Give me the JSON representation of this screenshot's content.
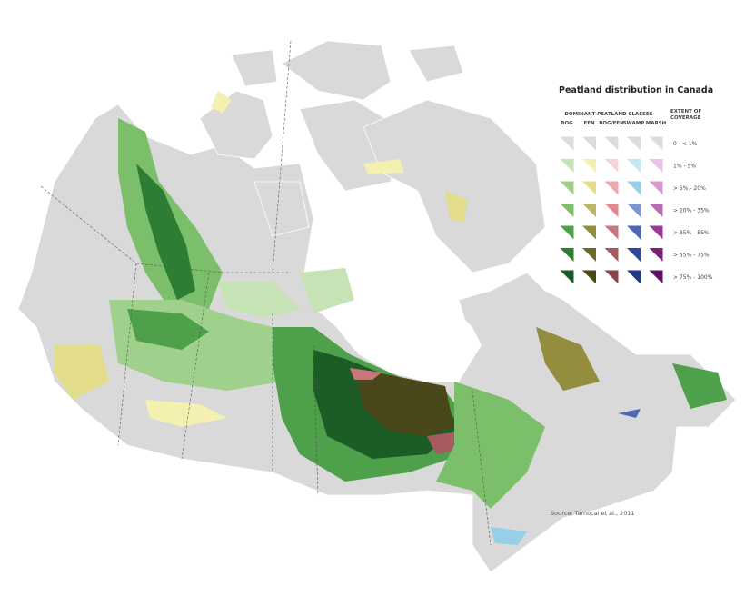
{
  "legend": {
    "title": "Peatland distribution in Canada",
    "classes_heading": "DOMINANT PEATLAND CLASSES",
    "classes": [
      {
        "name": "BOG",
        "colors": [
          "#dcdcdc",
          "#c5e3b5",
          "#9fd18c",
          "#7cbf6a",
          "#4ea14a",
          "#2e7d35",
          "#1b5c27"
        ]
      },
      {
        "name": "FEN",
        "colors": [
          "#dcdcdc",
          "#f3f0b0",
          "#e3dc8a",
          "#bdb56a",
          "#938d3e",
          "#6e6a26",
          "#4a471a"
        ]
      },
      {
        "name": "BOG/FEN",
        "colors": [
          "#dcdcdc",
          "#f6d5d8",
          "#eea9ad",
          "#de8a8e",
          "#c9777c",
          "#a85a5e",
          "#8a4446"
        ]
      },
      {
        "name": "SWAMP",
        "colors": [
          "#dcdcdc",
          "#c5e6f2",
          "#97cfe8",
          "#7d95d0",
          "#4b67b6",
          "#2c4a9e",
          "#1f3a8a"
        ]
      },
      {
        "name": "MARSH",
        "colors": [
          "#dcdcdc",
          "#e8c4e2",
          "#d69ad0",
          "#b86cb4",
          "#9a3a98",
          "#7b2078",
          "#5e1462"
        ]
      }
    ],
    "extent_heading": "EXTENT OF COVERAGE",
    "extents": [
      "0 - < 1%",
      "1% - 5%",
      "> 5% - 20%",
      "> 20% - 35%",
      "> 35% - 55%",
      "> 55% - 75%",
      "> 75% - 100%"
    ]
  },
  "source": "Source: Tarnocai et al., 2011"
}
